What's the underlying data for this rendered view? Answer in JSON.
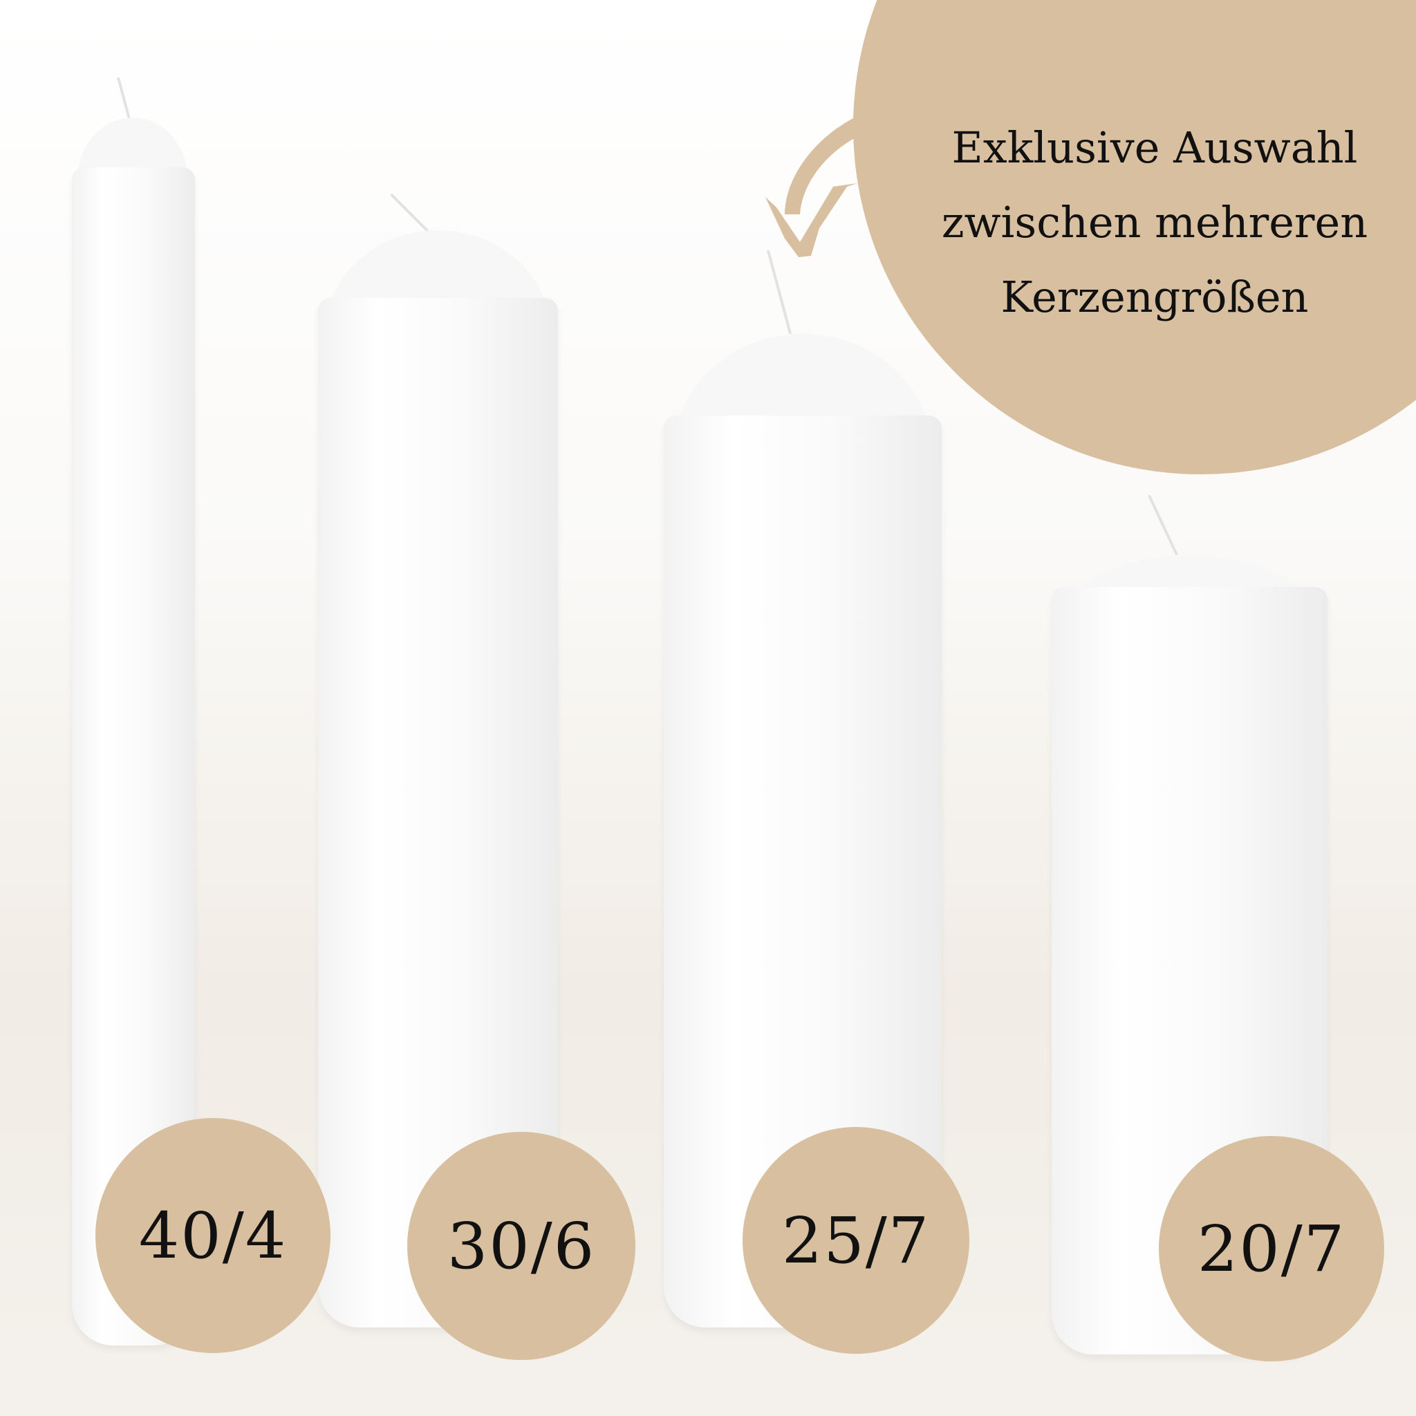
{
  "headline": {
    "lines": [
      "Exklusive Auswahl",
      "zwischen mehreren",
      "Kerzengrößen"
    ]
  },
  "sizes": [
    {
      "label": "40/4"
    },
    {
      "label": "30/6"
    },
    {
      "label": "25/7"
    },
    {
      "label": "20/7"
    }
  ],
  "colors": {
    "accent": "#d8bf9f",
    "text": "#111111",
    "candle": "#ffffff"
  },
  "icons": {
    "arrow": "curved-arrow-down-left"
  }
}
